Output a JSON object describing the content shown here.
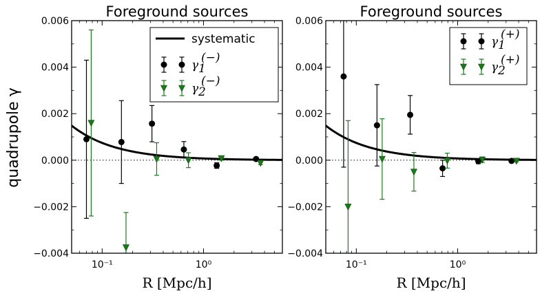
{
  "chart_data": [
    {
      "type": "scatter",
      "title": "Foreground sources",
      "xlabel": "R [Mpc/h]",
      "ylabel": "quadrupole γ",
      "xscale": "log",
      "xlim": [
        0.05,
        6
      ],
      "ylim": [
        -0.004,
        0.006
      ],
      "xticks": [
        0.1,
        1
      ],
      "xtick_labels": [
        "10⁻¹",
        "10⁰"
      ],
      "yticks": [
        -0.004,
        -0.002,
        0.0,
        0.002,
        0.004,
        0.006
      ],
      "ytick_labels": [
        "−0.004",
        "−0.002",
        "0.000",
        "0.002",
        "0.004",
        "0.006"
      ],
      "zero_line": "dotted",
      "legend_position": "top-right",
      "legend": [
        {
          "kind": "line",
          "label": "systematic"
        },
        {
          "kind": "circle",
          "label": "γ",
          "sub": "1",
          "sup": "(−)"
        },
        {
          "kind": "triangle",
          "label": "γ",
          "sub": "2",
          "sup": "(−)"
        }
      ],
      "systematic": {
        "amplitude": 7.43e-05,
        "exponent": -1
      },
      "series": [
        {
          "name": "γ1(−)",
          "marker": "circle",
          "color": "#000000",
          "x": [
            0.07,
            0.155,
            0.31,
            0.64,
            1.35,
            3.3
          ],
          "y": [
            0.0009,
            0.00078,
            0.00157,
            0.00046,
            -0.00023,
            5e-05
          ],
          "err": [
            0.0034,
            0.00178,
            0.00078,
            0.00034,
            0.00012,
            6e-05
          ]
        },
        {
          "name": "γ2(−)",
          "marker": "triangle",
          "color": "#1a7a1a",
          "x": [
            0.078,
            0.172,
            0.345,
            0.71,
            1.5,
            3.65
          ],
          "y": [
            0.0016,
            -0.00375,
            5e-05,
            0.0,
            8e-05,
            -0.00012
          ],
          "err": [
            0.004,
            0.0015,
            0.0007,
            0.00032,
            8e-05,
            7e-05
          ]
        }
      ]
    },
    {
      "type": "scatter",
      "title": "Foreground sources",
      "xlabel": "R [Mpc/h]",
      "ylabel": "",
      "xscale": "log",
      "xlim": [
        0.05,
        6
      ],
      "ylim": [
        -0.004,
        0.006
      ],
      "xticks": [
        0.1,
        1
      ],
      "xtick_labels": [
        "10⁻¹",
        "10⁰"
      ],
      "yticks": [
        -0.004,
        -0.002,
        0.0,
        0.002,
        0.004,
        0.006
      ],
      "ytick_labels": [
        "−0.004",
        "−0.002",
        "0.000",
        "0.002",
        "0.004",
        "0.006"
      ],
      "zero_line": "dotted",
      "legend_position": "top-right",
      "legend": [
        {
          "kind": "circle",
          "label": "γ",
          "sub": "1",
          "sup": "(+)"
        },
        {
          "kind": "triangle",
          "label": "γ",
          "sub": "2",
          "sup": "(+)"
        }
      ],
      "systematic": {
        "amplitude": 7.43e-05,
        "exponent": -1
      },
      "series": [
        {
          "name": "γ1(+)",
          "marker": "circle",
          "color": "#000000",
          "x": [
            0.075,
            0.16,
            0.34,
            0.71,
            1.6,
            3.4
          ],
          "y": [
            0.0036,
            0.0015,
            0.00195,
            -0.00035,
            -5e-05,
            -3e-05
          ],
          "err": [
            0.0039,
            0.00175,
            0.00083,
            0.00035,
            0.0001,
            4e-05
          ]
        },
        {
          "name": "γ2(+)",
          "marker": "triangle",
          "color": "#1a7a1a",
          "x": [
            0.083,
            0.18,
            0.37,
            0.79,
            1.75,
            3.8
          ],
          "y": [
            -0.002,
            5e-05,
            -0.0005,
            -2e-05,
            2e-05,
            -3e-05
          ],
          "err": [
            0.0037,
            0.00173,
            0.00083,
            0.00032,
            0.00012,
            4e-05
          ]
        }
      ]
    }
  ]
}
